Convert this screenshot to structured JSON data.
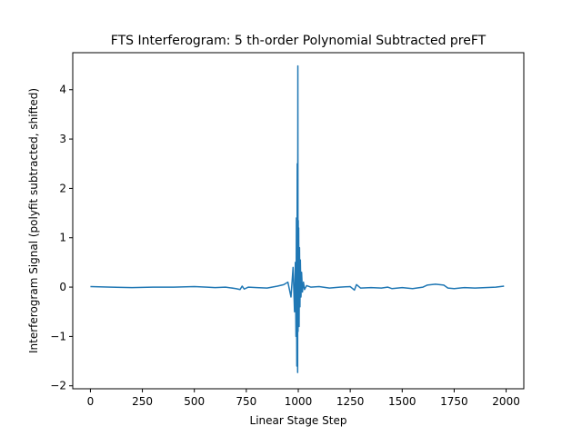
{
  "chart_data": {
    "type": "line",
    "title": "FTS Interferogram: 5 th-order Polynomial Subtracted preFT",
    "xlabel": "Linear Stage Step",
    "ylabel": "Interferogram Signal (polyfit subtracted, shifted)",
    "xlim": [
      -85,
      2085
    ],
    "ylim": [
      -2.06,
      4.75
    ],
    "xticks": [
      0,
      250,
      500,
      750,
      1000,
      1250,
      1500,
      1750,
      2000
    ],
    "xtick_labels": [
      "0",
      "250",
      "500",
      "750",
      "1000",
      "1250",
      "1500",
      "1750",
      "2000"
    ],
    "yticks": [
      -2,
      -1,
      0,
      1,
      2,
      3,
      4
    ],
    "ytick_labels": [
      "−2",
      "−1",
      "0",
      "1",
      "2",
      "3",
      "4"
    ],
    "grid": false,
    "series": [
      {
        "name": "interferogram",
        "color": "#1f77b4",
        "x": [
          0,
          100,
          200,
          300,
          400,
          500,
          560,
          600,
          650,
          700,
          720,
          730,
          740,
          760,
          800,
          850,
          900,
          930,
          950,
          965,
          975,
          982,
          986,
          989,
          991,
          993,
          995,
          997,
          998,
          999,
          1000,
          1001,
          1002,
          1004,
          1006,
          1008,
          1010,
          1013,
          1016,
          1020,
          1025,
          1030,
          1040,
          1060,
          1100,
          1150,
          1200,
          1250,
          1270,
          1280,
          1300,
          1350,
          1400,
          1430,
          1450,
          1500,
          1550,
          1600,
          1620,
          1640,
          1660,
          1700,
          1720,
          1750,
          1800,
          1850,
          1900,
          1950,
          1990
        ],
        "y": [
          0.01,
          0.0,
          -0.01,
          0.0,
          0.0,
          0.01,
          0.0,
          -0.01,
          0.0,
          -0.03,
          -0.05,
          0.02,
          -0.04,
          0.0,
          -0.01,
          -0.02,
          0.02,
          0.05,
          0.1,
          -0.2,
          0.4,
          -0.5,
          0.5,
          -1.0,
          1.4,
          -1.6,
          2.5,
          -1.73,
          4.48,
          -0.9,
          1.35,
          -0.6,
          1.2,
          -0.8,
          0.8,
          -0.4,
          0.55,
          -0.2,
          0.3,
          -0.1,
          0.1,
          -0.05,
          0.03,
          0.0,
          0.01,
          -0.02,
          0.0,
          0.01,
          -0.06,
          0.05,
          -0.02,
          -0.01,
          -0.02,
          0.0,
          -0.03,
          -0.01,
          -0.03,
          0.0,
          0.04,
          0.05,
          0.06,
          0.04,
          -0.02,
          -0.03,
          -0.01,
          -0.02,
          -0.01,
          0.0,
          0.02
        ]
      }
    ]
  }
}
